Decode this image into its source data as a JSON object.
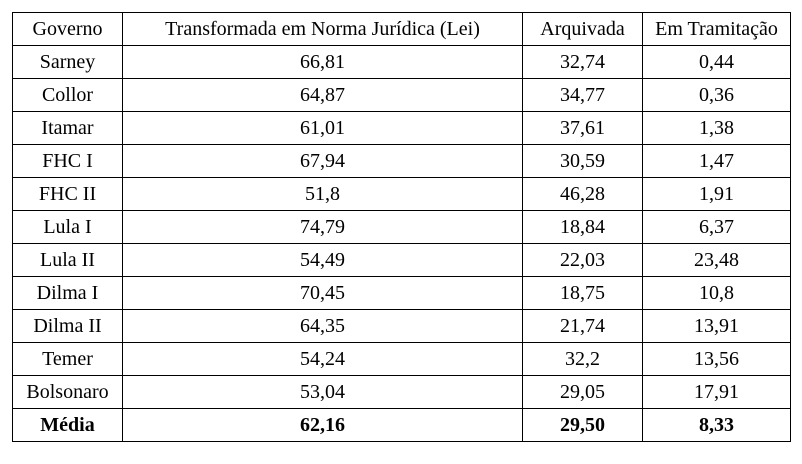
{
  "table": {
    "headers": {
      "governo": "Governo",
      "lei": "Transformada em Norma Jurídica (Lei)",
      "arquivada": "Arquivada",
      "tramitacao": "Em Tramitação"
    },
    "rows": [
      {
        "governo": "Sarney",
        "lei": "66,81",
        "arquivada": "32,74",
        "tramitacao": "0,44"
      },
      {
        "governo": "Collor",
        "lei": "64,87",
        "arquivada": "34,77",
        "tramitacao": "0,36"
      },
      {
        "governo": "Itamar",
        "lei": "61,01",
        "arquivada": "37,61",
        "tramitacao": "1,38"
      },
      {
        "governo": "FHC I",
        "lei": "67,94",
        "arquivada": "30,59",
        "tramitacao": "1,47"
      },
      {
        "governo": "FHC II",
        "lei": "51,8",
        "arquivada": "46,28",
        "tramitacao": "1,91"
      },
      {
        "governo": "Lula I",
        "lei": "74,79",
        "arquivada": "18,84",
        "tramitacao": "6,37"
      },
      {
        "governo": "Lula II",
        "lei": "54,49",
        "arquivada": "22,03",
        "tramitacao": "23,48"
      },
      {
        "governo": "Dilma I",
        "lei": "70,45",
        "arquivada": "18,75",
        "tramitacao": "10,8"
      },
      {
        "governo": "Dilma II",
        "lei": "64,35",
        "arquivada": "21,74",
        "tramitacao": "13,91"
      },
      {
        "governo": "Temer",
        "lei": "54,24",
        "arquivada": "32,2",
        "tramitacao": "13,56"
      },
      {
        "governo": "Bolsonaro",
        "lei": "53,04",
        "arquivada": "29,05",
        "tramitacao": "17,91"
      }
    ],
    "summary": {
      "governo": "Média",
      "lei": "62,16",
      "arquivada": "29,50",
      "tramitacao": "8,33"
    }
  }
}
